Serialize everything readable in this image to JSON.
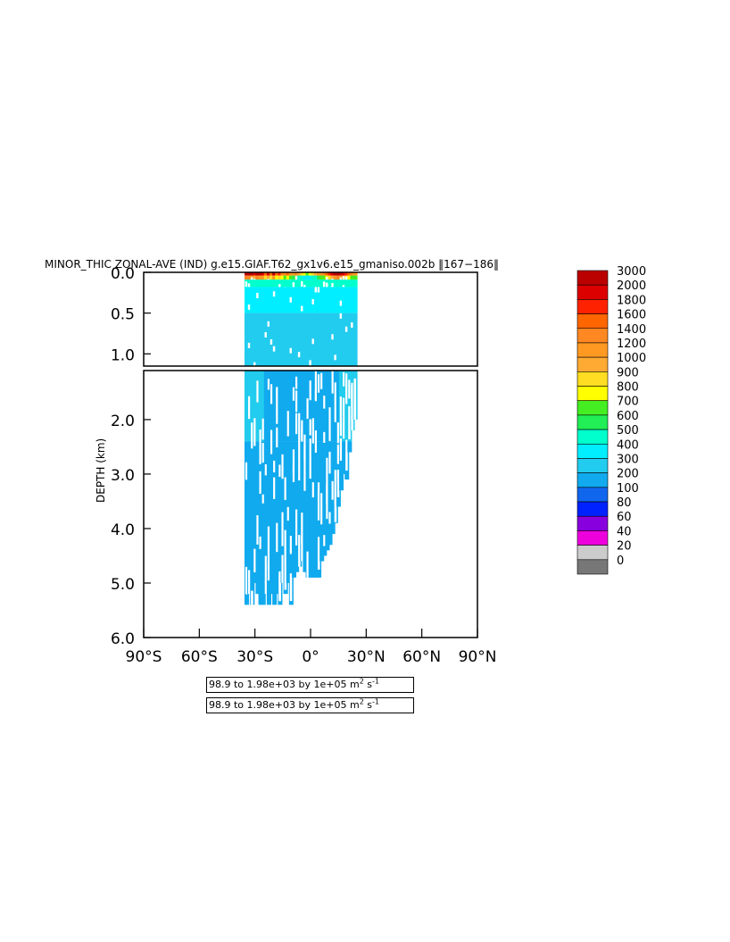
{
  "chart_data": {
    "type": "heatmap",
    "title": "MINOR_THIC ZONAL-AVE (IND) g.e15.GIAF.T62_gx1v6.e15_gmaniso.002b  ‖167−186‖",
    "ylabel": "DEPTH (km)",
    "xlabel": "",
    "x_range": [
      "90°S",
      "90°N"
    ],
    "xlim": [
      -90,
      90
    ],
    "ylim_top_panel": [
      0,
      1.15
    ],
    "ylim_bottom_panel": [
      1.1,
      6.0
    ],
    "x_ticks": [
      -90,
      -60,
      -30,
      0,
      30,
      60,
      90
    ],
    "x_tick_labels": [
      "90°S",
      "60°S",
      "30°S",
      "0°",
      "30°N",
      "60°N",
      "90°N"
    ],
    "y_ticks_top": [
      0.0,
      0.5,
      1.0
    ],
    "y_tick_labels_top": [
      "0.0",
      "0.5",
      "1.0"
    ],
    "y_ticks_bottom": [
      2.0,
      3.0,
      4.0,
      5.0,
      6.0
    ],
    "y_tick_labels_bottom": [
      "2.0",
      "3.0",
      "4.0",
      "5.0",
      "6.0"
    ],
    "colorbar": {
      "levels": [
        "3000",
        "2000",
        "1800",
        "1600",
        "1400",
        "1200",
        "1000",
        "900",
        "800",
        "700",
        "600",
        "500",
        "400",
        "300",
        "200",
        "100",
        "80",
        "60",
        "40",
        "20",
        "0"
      ],
      "colors": [
        "#bb0000",
        "#dd0000",
        "#ff2200",
        "#ff6600",
        "#ff8822",
        "#ff9922",
        "#ffaa33",
        "#ffdd22",
        "#ffff00",
        "#44ee22",
        "#22ee55",
        "#00ffcc",
        "#00eeff",
        "#22ccee",
        "#11aaee",
        "#1166ee",
        "#0022ff",
        "#8800dd",
        "#ee00dd",
        "#cccccc",
        "#777777"
      ]
    },
    "data_extent": {
      "lat_min": -35,
      "lat_max": 25,
      "max_depth_km": 5.4,
      "description_values": "surface band 0-0.1 km values 1000-3000 (red/orange), upper 1 km mostly 200-400, deep ocean mostly 100-200"
    },
    "columns": [
      {
        "lat": -34.5,
        "depth": 5.4,
        "surf": 2500
      },
      {
        "lat": -33.0,
        "depth": 5.2,
        "surf": 2200
      },
      {
        "lat": -31.5,
        "depth": 5.4,
        "surf": 2000
      },
      {
        "lat": -30.0,
        "depth": 5.0,
        "surf": 1800
      },
      {
        "lat": -28.5,
        "depth": 5.2,
        "surf": 2500
      },
      {
        "lat": -27.0,
        "depth": 5.4,
        "surf": 2000
      },
      {
        "lat": -25.5,
        "depth": 5.4,
        "surf": 1900
      },
      {
        "lat": -24.0,
        "depth": 5.2,
        "surf": 1500
      },
      {
        "lat": -22.5,
        "depth": 5.4,
        "surf": 1800
      },
      {
        "lat": -21.0,
        "depth": 5.2,
        "surf": 1500
      },
      {
        "lat": -19.5,
        "depth": 5.4,
        "surf": 2000
      },
      {
        "lat": -18.0,
        "depth": 5.2,
        "surf": 1400
      },
      {
        "lat": -16.5,
        "depth": 5.4,
        "surf": 1600
      },
      {
        "lat": -15.0,
        "depth": 5.0,
        "surf": 1300
      },
      {
        "lat": -13.5,
        "depth": 5.2,
        "surf": 1200
      },
      {
        "lat": -12.0,
        "depth": 5.0,
        "surf": 1400
      },
      {
        "lat": -10.5,
        "depth": 5.4,
        "surf": 1100
      },
      {
        "lat": -9.0,
        "depth": 4.9,
        "surf": 1000
      },
      {
        "lat": -7.5,
        "depth": 4.8,
        "surf": 1200
      },
      {
        "lat": -6.0,
        "depth": 4.7,
        "surf": 900
      },
      {
        "lat": -4.5,
        "depth": 4.6,
        "surf": 800
      },
      {
        "lat": -3.0,
        "depth": 4.8,
        "surf": 700
      },
      {
        "lat": -1.5,
        "depth": 4.9,
        "surf": 600
      },
      {
        "lat": 0.0,
        "depth": 4.9,
        "surf": 700
      },
      {
        "lat": 1.5,
        "depth": 4.9,
        "surf": 800
      },
      {
        "lat": 3.0,
        "depth": 4.9,
        "surf": 900
      },
      {
        "lat": 4.5,
        "depth": 4.9,
        "surf": 1000
      },
      {
        "lat": 6.0,
        "depth": 4.6,
        "surf": 1100
      },
      {
        "lat": 7.5,
        "depth": 4.5,
        "surf": 1200
      },
      {
        "lat": 9.0,
        "depth": 4.4,
        "surf": 1400
      },
      {
        "lat": 10.5,
        "depth": 4.3,
        "surf": 1600
      },
      {
        "lat": 12.0,
        "depth": 4.1,
        "surf": 1800
      },
      {
        "lat": 13.5,
        "depth": 3.9,
        "surf": 2000
      },
      {
        "lat": 15.0,
        "depth": 3.6,
        "surf": 2200
      },
      {
        "lat": 16.5,
        "depth": 3.3,
        "surf": 2000
      },
      {
        "lat": 18.0,
        "depth": 3.0,
        "surf": 1800
      },
      {
        "lat": 19.5,
        "depth": 3.1,
        "surf": 1600
      },
      {
        "lat": 21.0,
        "depth": 2.6,
        "surf": 1400
      },
      {
        "lat": 22.5,
        "depth": 2.2,
        "surf": 1200
      },
      {
        "lat": 24.0,
        "depth": 2.0,
        "surf": 1100
      }
    ]
  },
  "info_lines": [
    {
      "text": "98.9 to 1.98e+03 by 1e+05 m",
      "sup": "2",
      "suffix": " s",
      "sup2": "-1"
    },
    {
      "text": "98.9 to 1.98e+03 by 1e+05 m",
      "sup": "2",
      "suffix": " s",
      "sup2": "-1"
    }
  ]
}
